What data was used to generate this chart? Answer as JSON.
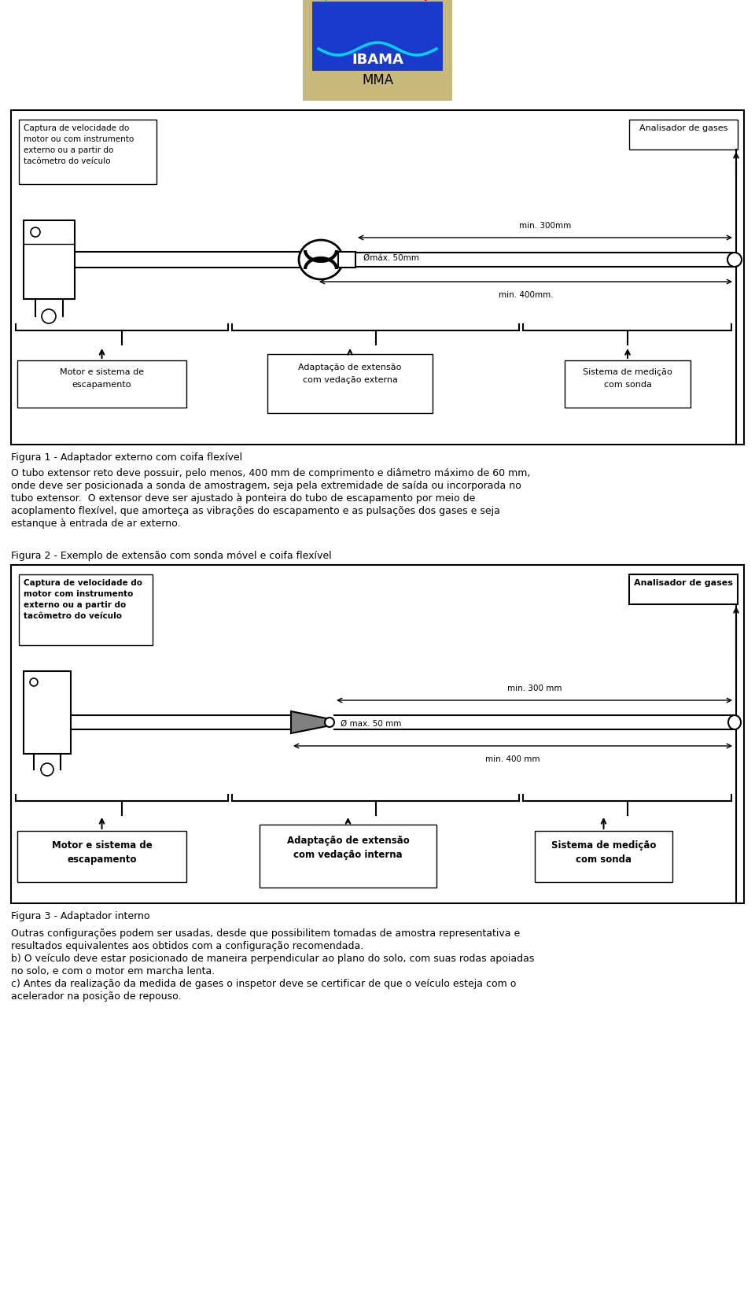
{
  "fig1_caption": "Figura 1 - Adaptador externo com coifa flexível",
  "fig2_caption": "Figura 2 - Exemplo de extensão com sonda móvel e coifa flexível",
  "fig3_caption": "Figura 3 - Adaptador interno",
  "para1_lines": [
    "O tubo extensor reto deve possuir, pelo menos, 400 mm de comprimento e diâmetro máximo de 60 mm,",
    "onde deve ser posicionada a sonda de amostragem, seja pela extremidade de saída ou incorporada no",
    "tubo extensor.  O extensor deve ser ajustado à ponteira do tubo de escapamento por meio de",
    "acoplamento flexível, que amorteça as vibrações do escapamento e as pulsações dos gases e seja",
    "estanque à entrada de ar externo."
  ],
  "para2_lines": [
    "Outras configurações podem ser usadas, desde que possibilitem tomadas de amostra representativa e",
    "resultados equivalentes aos obtidos com a configuração recomendada.",
    "b) O veículo deve estar posicionado de maneira perpendicular ao plano do solo, com suas rodas apoiadas",
    "no solo, e com o motor em marcha lenta.",
    "c) Antes da realização da medida de gases o inspetor deve se certificar de que o veículo esteja com o",
    "acelerador na posição de repouso."
  ]
}
